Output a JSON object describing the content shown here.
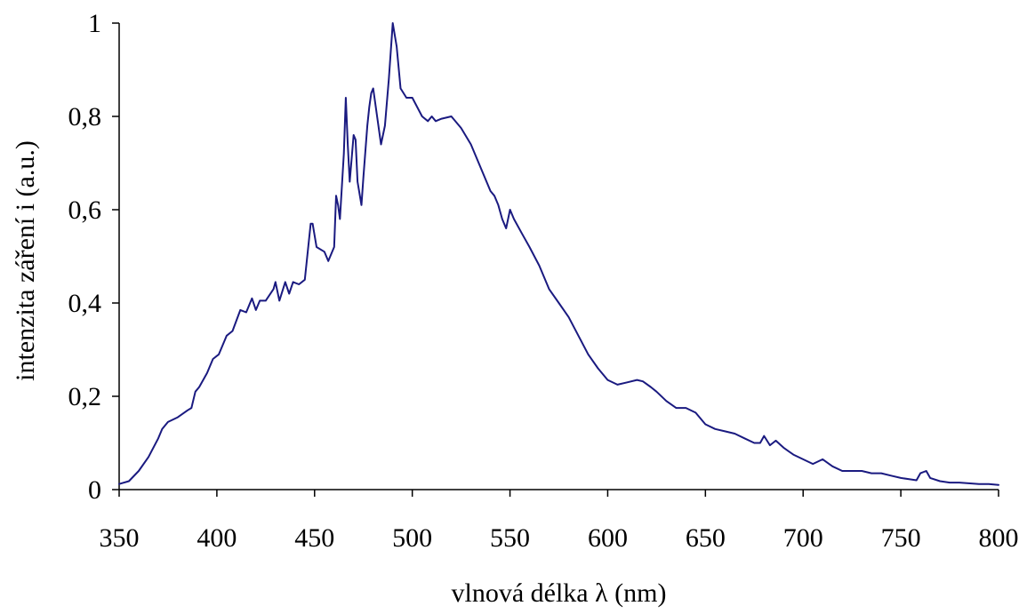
{
  "chart_data": {
    "type": "line",
    "xlabel": "vlnová délka λ (nm)",
    "ylabel": "intenzita záření i  (a.u.)",
    "xlim": [
      350,
      800
    ],
    "ylim": [
      0,
      1
    ],
    "x_ticks": [
      350,
      400,
      450,
      500,
      550,
      600,
      650,
      700,
      750,
      800
    ],
    "x_tick_labels": [
      "350",
      "400",
      "450",
      "500",
      "550",
      "600",
      "650",
      "700",
      "750",
      "800"
    ],
    "y_ticks": [
      0,
      0.2,
      0.4,
      0.6,
      0.8,
      1
    ],
    "y_tick_labels": [
      "0",
      "0,2",
      "0,4",
      "0,6",
      "0,8",
      "1"
    ],
    "grid": false,
    "legend": "none",
    "series": [
      {
        "color": "#1a1a80",
        "x": [
          350,
          355,
          360,
          365,
          370,
          372,
          375,
          380,
          385,
          387,
          389,
          391,
          395,
          398,
          401,
          405,
          408,
          412,
          415,
          418,
          420,
          422,
          425,
          429,
          430,
          432,
          435,
          437,
          439,
          442,
          445,
          448,
          449,
          451,
          455,
          457,
          460,
          461,
          462,
          463,
          465,
          466,
          467,
          468,
          470,
          471,
          472,
          474,
          475,
          477,
          478,
          479,
          480,
          482,
          484,
          486,
          488,
          490,
          492,
          494,
          497,
          500,
          505,
          508,
          510,
          512,
          515,
          520,
          525,
          530,
          535,
          540,
          542,
          544,
          546,
          548,
          550,
          552,
          556,
          560,
          565,
          570,
          575,
          580,
          585,
          590,
          595,
          600,
          605,
          610,
          615,
          618,
          622,
          625,
          630,
          635,
          640,
          645,
          650,
          655,
          660,
          665,
          670,
          675,
          678,
          680,
          683,
          686,
          690,
          695,
          700,
          705,
          710,
          715,
          720,
          730,
          735,
          740,
          745,
          750,
          755,
          758,
          760,
          763,
          765,
          770,
          775,
          780,
          790,
          795,
          800
        ],
        "values": [
          0.012,
          0.018,
          0.04,
          0.07,
          0.11,
          0.13,
          0.145,
          0.155,
          0.17,
          0.175,
          0.21,
          0.22,
          0.25,
          0.28,
          0.29,
          0.33,
          0.34,
          0.385,
          0.38,
          0.41,
          0.385,
          0.405,
          0.405,
          0.43,
          0.445,
          0.405,
          0.445,
          0.42,
          0.445,
          0.44,
          0.45,
          0.57,
          0.57,
          0.52,
          0.51,
          0.49,
          0.52,
          0.63,
          0.61,
          0.58,
          0.72,
          0.84,
          0.74,
          0.66,
          0.76,
          0.75,
          0.66,
          0.61,
          0.67,
          0.78,
          0.82,
          0.85,
          0.86,
          0.8,
          0.74,
          0.78,
          0.88,
          1.0,
          0.95,
          0.86,
          0.84,
          0.84,
          0.8,
          0.79,
          0.8,
          0.79,
          0.795,
          0.8,
          0.775,
          0.74,
          0.69,
          0.64,
          0.63,
          0.61,
          0.58,
          0.56,
          0.6,
          0.58,
          0.55,
          0.52,
          0.48,
          0.43,
          0.4,
          0.37,
          0.33,
          0.29,
          0.26,
          0.235,
          0.225,
          0.23,
          0.235,
          0.232,
          0.22,
          0.21,
          0.19,
          0.175,
          0.175,
          0.165,
          0.14,
          0.13,
          0.125,
          0.12,
          0.11,
          0.1,
          0.1,
          0.115,
          0.095,
          0.105,
          0.09,
          0.075,
          0.065,
          0.055,
          0.065,
          0.05,
          0.04,
          0.04,
          0.035,
          0.035,
          0.03,
          0.025,
          0.022,
          0.02,
          0.035,
          0.04,
          0.025,
          0.018,
          0.015,
          0.015,
          0.012,
          0.012,
          0.01
        ]
      }
    ]
  }
}
